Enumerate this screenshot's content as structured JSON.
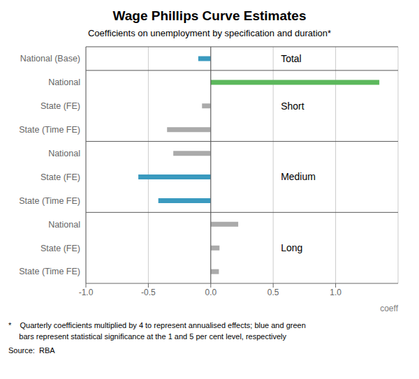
{
  "chart_data": {
    "type": "bar",
    "orientation": "horizontal",
    "title": "Wage Phillips Curve Estimates",
    "subtitle": "Coefficients on unemployment by specification and duration*",
    "xlabel": "coeff",
    "categories": [
      "National (Base)",
      "National",
      "State (FE)",
      "State (Time FE)",
      "National",
      "State (FE)",
      "State (Time FE)",
      "National",
      "State (FE)",
      "State (Time FE)"
    ],
    "groups": [
      "Total",
      "Short",
      "Short",
      "Short",
      "Medium",
      "Medium",
      "Medium",
      "Long",
      "Long",
      "Long"
    ],
    "values": [
      -0.1,
      1.35,
      -0.07,
      -0.35,
      -0.3,
      -0.58,
      -0.42,
      0.22,
      0.07,
      0.065
    ],
    "colors": [
      "#3a9abf",
      "#5cb85c",
      "#aaaaaa",
      "#aaaaaa",
      "#aaaaaa",
      "#3a9abf",
      "#3a9abf",
      "#aaaaaa",
      "#aaaaaa",
      "#aaaaaa"
    ],
    "xlim": [
      -1.0,
      1.5
    ],
    "xticks": [
      {
        "value": -1.0,
        "label": "-1.0"
      },
      -0.5,
      {
        "value": 0.0,
        "label": "0.0"
      },
      0.5,
      {
        "value": 1.0,
        "label": "1.0"
      }
    ],
    "grid": true,
    "annotations": [
      {
        "text": "Total",
        "x": 0.55
      },
      {
        "text": "Short",
        "x": 0.55
      },
      {
        "text": "Medium",
        "x": 0.55
      },
      {
        "text": "Long",
        "x": 0.55
      }
    ],
    "footnotes": [
      "*    Quarterly coefficients multiplied by 4 to represent annualised effects; blue and green",
      "     bars represent statistical significance at the 1 and 5 per cent level, respectively"
    ],
    "source": "Source:  RBA"
  }
}
